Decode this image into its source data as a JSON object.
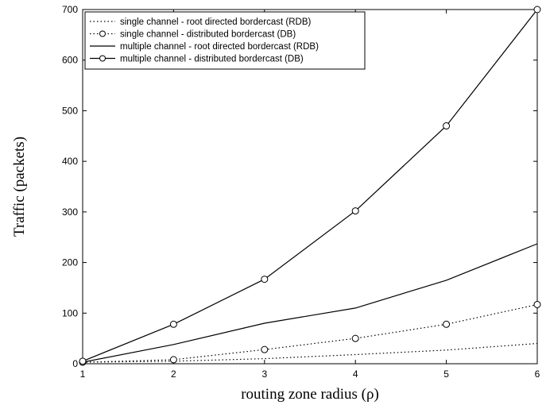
{
  "chart_data": {
    "type": "line",
    "title": "",
    "xlabel": "routing zone radius  (ρ)",
    "ylabel": "Traffic (packets)",
    "xlim": [
      1,
      6
    ],
    "ylim": [
      0,
      700
    ],
    "x_ticks": [
      1,
      2,
      3,
      4,
      5,
      6
    ],
    "y_ticks": [
      0,
      100,
      200,
      300,
      400,
      500,
      600,
      700
    ],
    "grid": false,
    "legend_position": "top-left",
    "x": [
      1,
      2,
      3,
      4,
      5,
      6
    ],
    "series": [
      {
        "name": "single channel    - root directed bordercast (RDB)",
        "style": "dotted",
        "marker": "none",
        "color": "#000000",
        "values": [
          3,
          5,
          10,
          18,
          27,
          40
        ]
      },
      {
        "name": "single channel    - distributed bordercast (DB)",
        "style": "dotted",
        "marker": "circle",
        "color": "#000000",
        "values": [
          3,
          8,
          28,
          50,
          78,
          117
        ]
      },
      {
        "name": "multiple channel - root directed bordercast (RDB)",
        "style": "solid",
        "marker": "none",
        "color": "#000000",
        "values": [
          3,
          38,
          80,
          110,
          165,
          237
        ]
      },
      {
        "name": "multiple channel - distributed bordercast (DB)",
        "style": "solid",
        "marker": "circle",
        "color": "#000000",
        "values": [
          5,
          78,
          167,
          302,
          470,
          700
        ]
      }
    ]
  }
}
